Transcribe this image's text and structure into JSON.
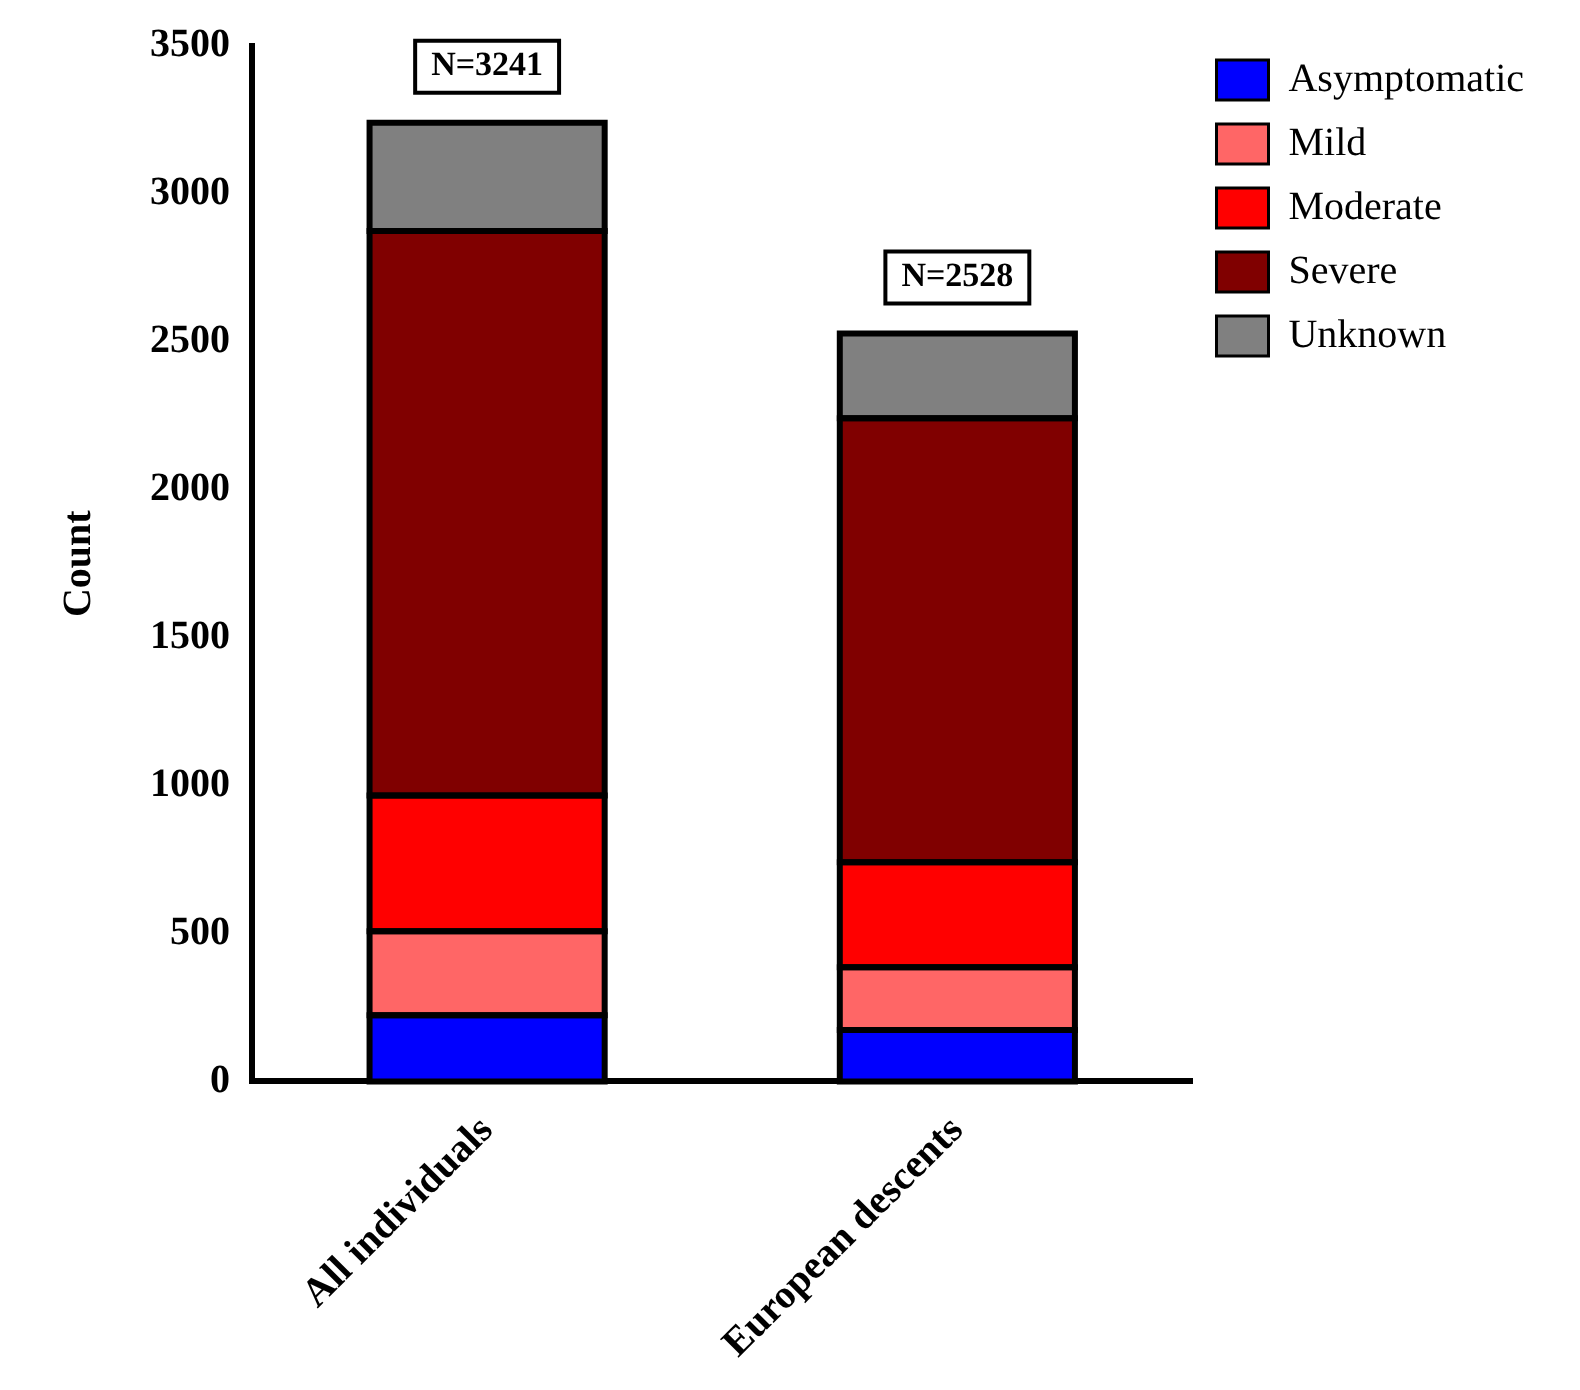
{
  "chart_data": {
    "type": "bar",
    "stacked": true,
    "ylabel": "Count",
    "categories": [
      "All individuals",
      "European descents"
    ],
    "series": [
      {
        "name": "Asymptomatic",
        "color": "#0000ff",
        "values": [
          224,
          174
        ]
      },
      {
        "name": "Mild",
        "color": "#ff6666",
        "values": [
          284,
          212
        ]
      },
      {
        "name": "Moderate",
        "color": "#ff0000",
        "values": [
          459,
          355
        ]
      },
      {
        "name": "Severe",
        "color": "#800000",
        "values": [
          1908,
          1501
        ]
      },
      {
        "name": "Unknown",
        "color": "#808080",
        "values": [
          366,
          286
        ]
      }
    ],
    "totals": [
      "N=3241",
      "N=2528"
    ],
    "ylim": [
      0,
      3500
    ],
    "yticks": [
      0,
      500,
      1000,
      1500,
      2000,
      2500,
      3000,
      3500
    ],
    "grid": false,
    "legend": "top right"
  }
}
